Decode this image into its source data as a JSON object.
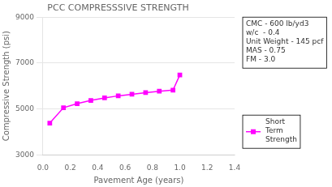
{
  "chart_data": {
    "type": "line",
    "title": "PCC COMPRESSSIVE STRENGTH",
    "xlabel": "Pavement Age (years)",
    "ylabel": "Compressive Strength (psi)",
    "x": [
      0.05,
      0.15,
      0.25,
      0.35,
      0.45,
      0.55,
      0.65,
      0.75,
      0.85,
      0.95,
      1.0
    ],
    "series": [
      {
        "name": "Short\nTerm\nStrength",
        "color": "#FF00FF",
        "marker": "square",
        "values": [
          4380,
          5050,
          5230,
          5370,
          5480,
          5570,
          5640,
          5710,
          5770,
          5820,
          6480
        ]
      }
    ],
    "xlim": [
      0,
      1.4
    ],
    "ylim": [
      3000,
      9000
    ],
    "xticks": [
      {
        "value": 0,
        "label": "0.0"
      },
      0.2,
      0.4,
      0.6,
      0.8,
      {
        "value": 1.0,
        "label": "1.0"
      },
      1.2,
      1.4
    ],
    "yticks": [
      3000,
      5000,
      7000,
      9000
    ],
    "annotations": [
      "CMC - 600 lb/yd3",
      "w/c  - 0.4",
      "Unit Weight - 145 pcf",
      "MAS - 0.75",
      "FM - 3.0"
    ],
    "grid": true,
    "legend": "lower right"
  }
}
